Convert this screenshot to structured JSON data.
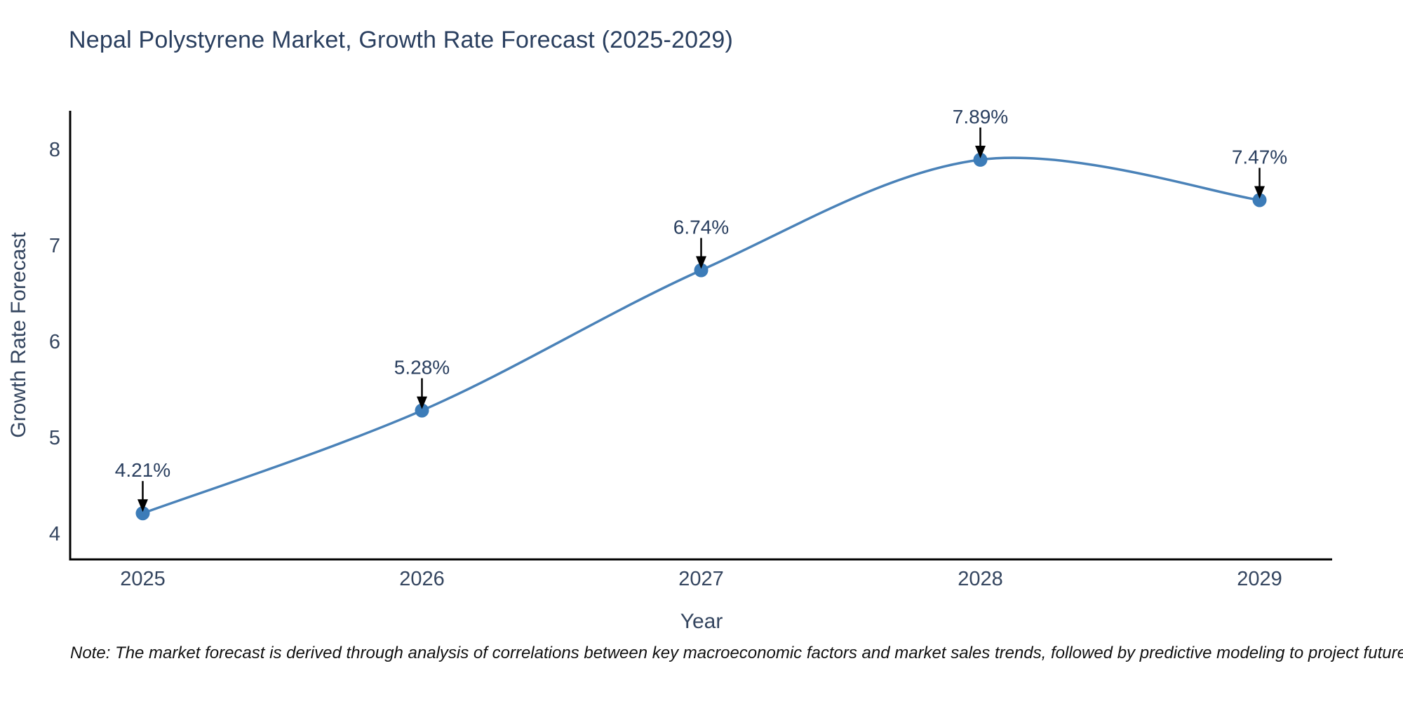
{
  "chart_data": {
    "type": "line",
    "title": "Nepal Polystyrene Market, Growth Rate Forecast (2025-2029)",
    "xlabel": "Year",
    "ylabel": "Growth Rate Forecast",
    "x": [
      2025,
      2026,
      2027,
      2028,
      2029
    ],
    "values": [
      4.21,
      5.28,
      6.74,
      7.89,
      7.47
    ],
    "point_labels": [
      "4.21%",
      "5.28%",
      "6.74%",
      "7.89%",
      "7.47%"
    ],
    "xticks": [
      2025,
      2026,
      2027,
      2028,
      2029
    ],
    "yticks": [
      4,
      5,
      6,
      7,
      8
    ],
    "xlim": [
      2024.74,
      2029.26
    ],
    "ylim": [
      3.73,
      8.4
    ],
    "grid": false,
    "legend": "none",
    "line_shape": "spline",
    "line_color": "#4a82b8",
    "marker_color": "#3c7cb8",
    "axis_color": "#000000",
    "text_color": "#2a3f5f",
    "note": "Note: The market forecast is derived through analysis of correlations between key macroeconomic factors and market sales trends, followed by predictive modeling to project future sales."
  }
}
